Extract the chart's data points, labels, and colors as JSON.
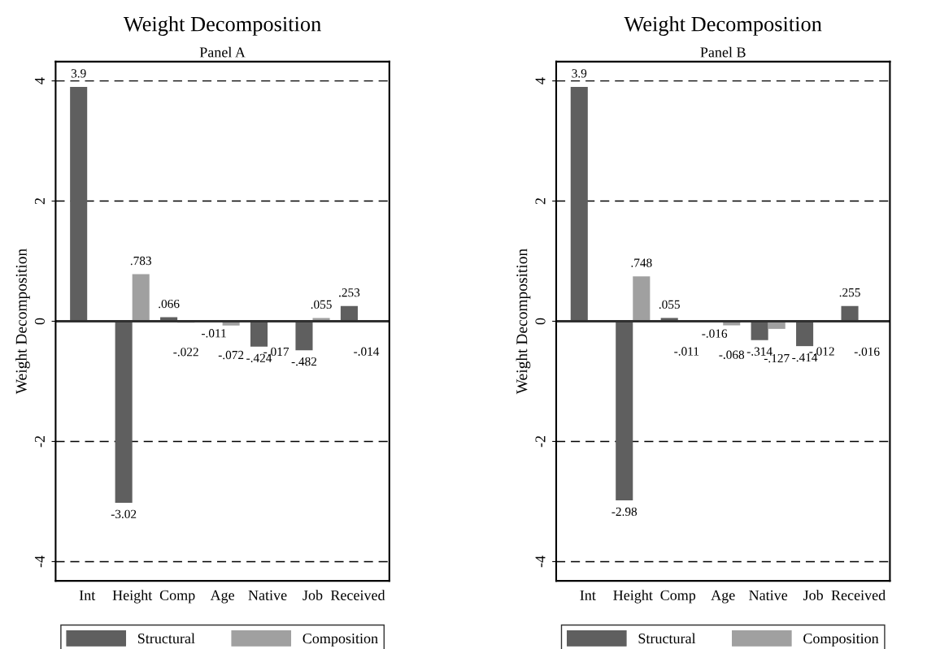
{
  "chart_data": [
    {
      "type": "bar",
      "title": "Weight Decomposition",
      "subtitle": "Panel A",
      "ylabel": "Weight Decomposition",
      "categories": [
        "Int",
        "Height",
        "Comp",
        "Age",
        "Native",
        "Job",
        "Received"
      ],
      "series": [
        {
          "name": "Structural",
          "color": "#5f5f5f",
          "values": [
            3.9,
            -3.02,
            0.066,
            -0.011,
            -0.424,
            -0.482,
            0.253
          ],
          "value_labels": [
            "3.9",
            "-3.02",
            ".066",
            "-.011",
            "-.424",
            "-.482",
            ".253"
          ]
        },
        {
          "name": "Composition",
          "color": "#a0a0a0",
          "values": [
            null,
            0.783,
            -0.022,
            -0.072,
            -0.017,
            0.055,
            -0.014
          ],
          "value_labels": [
            null,
            ".783",
            "-.022",
            "-.072",
            "-.017",
            ".055",
            "-.014"
          ]
        }
      ],
      "ylim": [
        -4.32,
        4.32
      ],
      "yticks": [
        -4,
        -2,
        0,
        2,
        4
      ],
      "grid": "y",
      "line_style": "dashed",
      "ref_lines": [
        {
          "axis": "y",
          "value": 0,
          "color": "#303030",
          "line_style": "solid"
        }
      ],
      "legend": "bottom"
    },
    {
      "type": "bar",
      "title": "Weight Decomposition",
      "subtitle": "Panel B",
      "ylabel": "Weight Decomposition",
      "categories": [
        "Int",
        "Height",
        "Comp",
        "Age",
        "Native",
        "Job",
        "Received"
      ],
      "series": [
        {
          "name": "Structural",
          "color": "#5f5f5f",
          "values": [
            3.9,
            -2.98,
            0.055,
            -0.016,
            -0.314,
            -0.414,
            0.255
          ],
          "value_labels": [
            "3.9",
            "-2.98",
            ".055",
            "-.016",
            "-.314",
            "-.414",
            ".255"
          ]
        },
        {
          "name": "Composition",
          "color": "#a0a0a0",
          "values": [
            null,
            0.748,
            -0.011,
            -0.068,
            -0.127,
            -0.012,
            -0.016
          ],
          "value_labels": [
            null,
            ".748",
            "-.011",
            "-.068",
            "-.127",
            "-.012",
            "-.016"
          ]
        }
      ],
      "ylim": [
        -4.32,
        4.32
      ],
      "yticks": [
        -4,
        -2,
        0,
        2,
        4
      ],
      "grid": "y",
      "line_style": "dashed",
      "ref_lines": [
        {
          "axis": "y",
          "value": 0,
          "color": "#303030",
          "line_style": "solid"
        }
      ],
      "legend": "bottom"
    }
  ]
}
